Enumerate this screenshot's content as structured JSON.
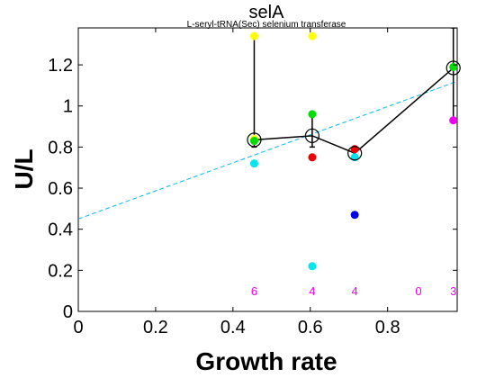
{
  "chart_data": {
    "type": "scatter",
    "title": "selA",
    "subtitle": "L-seryl-tRNA(Sec) selenium transferase",
    "xlabel": "Growth rate",
    "ylabel": "U/L",
    "xlim": [
      0,
      0.98
    ],
    "ylim": [
      0,
      1.38
    ],
    "xticks": [
      0,
      0.2,
      0.4,
      0.6,
      0.8
    ],
    "yticks": [
      0,
      0.2,
      0.4,
      0.6,
      0.8,
      1,
      1.2
    ],
    "xtick_labels": [
      "0",
      "0.2",
      "0.4",
      "0.6",
      "0.8"
    ],
    "ytick_labels": [
      "0",
      "0.2",
      "0.4",
      "0.6",
      "0.8",
      "1",
      "1.2"
    ],
    "grid": false,
    "colors": {
      "yellow": "#ffff00",
      "green": "#00dd00",
      "red": "#ee0000",
      "cyan": "#00e5ee",
      "blue": "#0000ee",
      "magenta": "#ee00ee",
      "line": "#000000",
      "fit": "#00bbee"
    },
    "points": [
      {
        "x": 0.455,
        "y": 1.34,
        "color": "yellow"
      },
      {
        "x": 0.455,
        "y": 0.84,
        "color": "yellow"
      },
      {
        "x": 0.455,
        "y": 0.83,
        "color": "green"
      },
      {
        "x": 0.455,
        "y": 0.72,
        "color": "cyan"
      },
      {
        "x": 0.605,
        "y": 1.34,
        "color": "yellow"
      },
      {
        "x": 0.605,
        "y": 0.96,
        "color": "green"
      },
      {
        "x": 0.605,
        "y": 0.75,
        "color": "red"
      },
      {
        "x": 0.605,
        "y": 0.22,
        "color": "cyan"
      },
      {
        "x": 0.715,
        "y": 0.79,
        "color": "red"
      },
      {
        "x": 0.715,
        "y": 0.75,
        "color": "cyan"
      },
      {
        "x": 0.715,
        "y": 0.47,
        "color": "blue"
      },
      {
        "x": 0.97,
        "y": 1.19,
        "color": "green"
      },
      {
        "x": 0.97,
        "y": 0.93,
        "color": "magenta"
      }
    ],
    "mean_series": [
      {
        "x": 0.455,
        "y": 0.835
      },
      {
        "x": 0.605,
        "y": 0.855
      },
      {
        "x": 0.715,
        "y": 0.77
      },
      {
        "x": 0.97,
        "y": 1.185
      }
    ],
    "error_bars": [
      {
        "x": 0.455,
        "low": 0.8,
        "high": 1.35
      },
      {
        "x": 0.605,
        "low": 0.8,
        "high": 0.955
      },
      {
        "x": 0.715,
        "low": 0.745,
        "high": 0.8
      },
      {
        "x": 0.97,
        "low": 0.93,
        "high": 1.38
      }
    ],
    "fit_line": {
      "x": [
        0,
        0.98
      ],
      "y": [
        0.45,
        1.12
      ]
    },
    "counts": [
      {
        "x": 0.455,
        "label": "6"
      },
      {
        "x": 0.605,
        "label": "4"
      },
      {
        "x": 0.715,
        "label": "4"
      },
      {
        "x": 0.88,
        "label": "0"
      },
      {
        "x": 0.97,
        "label": "3"
      }
    ],
    "count_label_y": 0.1
  }
}
